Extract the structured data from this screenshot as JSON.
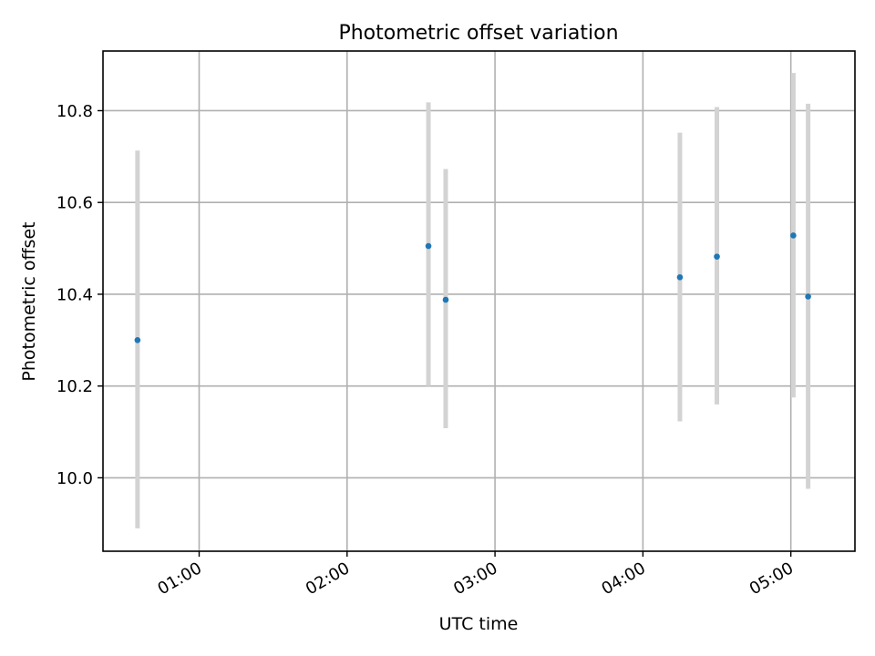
{
  "chart_data": {
    "type": "scatter",
    "title": "Photometric offset variation",
    "xlabel": "UTC time",
    "ylabel": "Photometric offset",
    "x_ticks": [
      "01:00",
      "02:00",
      "03:00",
      "04:00",
      "05:00"
    ],
    "x_tick_values": [
      60,
      120,
      180,
      240,
      300
    ],
    "xlim": [
      21,
      326
    ],
    "y_ticks": [
      "10.0",
      "10.2",
      "10.4",
      "10.6",
      "10.8"
    ],
    "y_tick_values": [
      10.0,
      10.2,
      10.4,
      10.6,
      10.8
    ],
    "ylim": [
      9.84,
      10.93
    ],
    "grid": true,
    "point_color": "#1f77b4",
    "errorbar_color": "#d3d3d3",
    "series": [
      {
        "x": [
          "00:35",
          "02:33",
          "02:40",
          "04:15",
          "04:30",
          "05:01",
          "05:07"
        ],
        "y": [
          10.3,
          10.505,
          10.388,
          10.437,
          10.482,
          10.528,
          10.395
        ],
        "yerr_low": [
          9.89,
          10.2,
          10.108,
          10.123,
          10.16,
          10.175,
          9.976
        ],
        "yerr_high": [
          10.713,
          10.818,
          10.673,
          10.752,
          10.808,
          10.882,
          10.815
        ]
      }
    ]
  }
}
